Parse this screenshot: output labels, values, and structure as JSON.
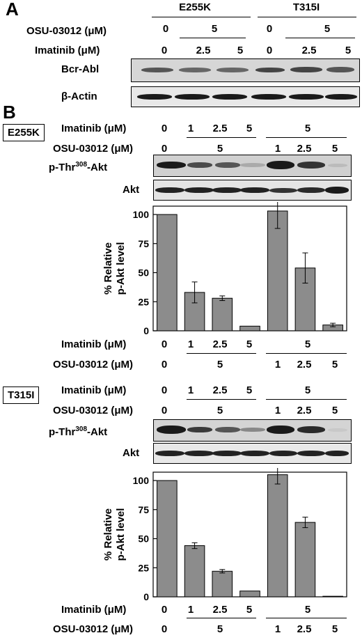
{
  "panel_a": {
    "letter": "A",
    "group1": "E255K",
    "group2": "T315I",
    "osu_label": "OSU-03012 (μM)",
    "osu_values": [
      "0",
      "5",
      "0",
      "5"
    ],
    "imatinib_label": "Imatinib (μM)",
    "imatinib_values": [
      "0",
      "2.5",
      "5",
      "0",
      "2.5",
      "5"
    ],
    "blot1_label": "Bcr-Abl",
    "blot2_label": "β-Actin"
  },
  "panel_b": {
    "letter": "B",
    "e255k": {
      "box_label": "E255K",
      "imatinib_label": "Imatinib (μM)",
      "imatinib_values": [
        "0",
        "1",
        "2.5",
        "5",
        "5"
      ],
      "osu_label": "OSU-03012 (μM)",
      "osu_values": [
        "0",
        "5",
        "1",
        "2.5",
        "5"
      ],
      "blot1_label_pre": "p-Thr",
      "blot1_label_sup": "308",
      "blot1_label_post": "-Akt",
      "blot2_label": "Akt",
      "axis_imatinib_label": "Imatinib (μM)",
      "axis_imatinib_values": [
        "0",
        "1",
        "2.5",
        "5",
        "5"
      ],
      "axis_osu_label": "OSU-03012 (μM)",
      "axis_osu_values": [
        "0",
        "5",
        "1",
        "2.5",
        "5"
      ]
    },
    "t315i": {
      "box_label": "T315I",
      "imatinib_label": "Imatinib (μM)",
      "imatinib_values": [
        "0",
        "1",
        "2.5",
        "5",
        "5"
      ],
      "osu_label": "OSU-03012 (μM)",
      "osu_values": [
        "0",
        "5",
        "1",
        "2.5",
        "5"
      ],
      "blot1_label_pre": "p-Thr",
      "blot1_label_sup": "308",
      "blot1_label_post": "-Akt",
      "blot2_label": "Akt",
      "axis_imatinib_label": "Imatinib (μM)",
      "axis_imatinib_values": [
        "0",
        "1",
        "2.5",
        "5",
        "5"
      ],
      "axis_osu_label": "OSU-03012 (μM)",
      "axis_osu_values": [
        "0",
        "5",
        "1",
        "2.5",
        "5"
      ]
    }
  },
  "colors": {
    "bar": "#8c8c8c",
    "band": "#1a1a1a",
    "blot_bg": "#dcdcdc"
  },
  "chart_data": [
    {
      "type": "bar",
      "ylabel": "% Relative p-Akt level",
      "ylim": [
        0,
        100
      ],
      "yticks": [
        "0",
        "25",
        "50",
        "75",
        "100"
      ],
      "values": [
        100,
        33,
        28,
        4,
        103,
        54,
        5
      ],
      "errors": [
        0,
        9,
        2,
        0,
        15,
        13,
        1.5
      ]
    },
    {
      "type": "bar",
      "ylabel": "% Relative p-Akt level",
      "ylim": [
        0,
        100
      ],
      "yticks": [
        "0",
        "25",
        "50",
        "75",
        "100"
      ],
      "values": [
        100,
        44,
        22,
        5,
        105,
        64,
        0.5
      ],
      "errors": [
        0,
        2.5,
        1.5,
        0,
        8,
        4.5,
        0
      ]
    }
  ]
}
